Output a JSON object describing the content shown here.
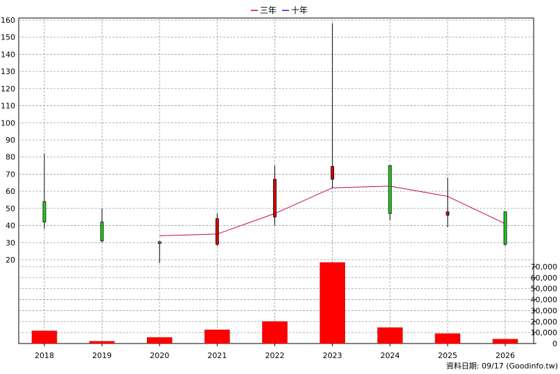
{
  "chart_data": {
    "type": "candlestick+bar",
    "legend": [
      {
        "name": "三年",
        "color": "#c00060"
      },
      {
        "name": "十年",
        "color": "#6000c0"
      }
    ],
    "categories": [
      "2018",
      "2019",
      "2020",
      "2021",
      "2022",
      "2023",
      "2024",
      "2025",
      "2026"
    ],
    "price_axis": {
      "ylim": [
        20,
        160
      ],
      "ticks": [
        20,
        30,
        40,
        50,
        60,
        70,
        80,
        90,
        100,
        110,
        120,
        130,
        140,
        150,
        160
      ]
    },
    "volume_axis": {
      "ylim": [
        0,
        70000
      ],
      "ticks": [
        "0",
        "10,000",
        "20,000",
        "30,000",
        "40,000",
        "50,000",
        "60,000",
        "70,000"
      ]
    },
    "candles": [
      {
        "open": 42,
        "close": 54,
        "high": 82,
        "low": 38,
        "color": "green"
      },
      {
        "open": 31,
        "close": 42,
        "high": 50,
        "low": 30,
        "color": "green"
      },
      {
        "open": 29.5,
        "close": 30.5,
        "high": 31,
        "low": 18,
        "color": "green"
      },
      {
        "open": 44,
        "close": 29,
        "high": 47,
        "low": 28,
        "color": "red"
      },
      {
        "open": 67,
        "close": 45,
        "high": 75,
        "low": 40,
        "color": "red"
      },
      {
        "open": 74.5,
        "close": 67,
        "high": 158,
        "low": 62,
        "color": "red"
      },
      {
        "open": 47,
        "close": 75,
        "high": 75,
        "low": 43,
        "color": "green"
      },
      {
        "open": 48,
        "close": 46,
        "high": 68,
        "low": 39,
        "color": "red"
      },
      {
        "open": 29,
        "close": 48,
        "high": 48,
        "low": 28,
        "color": "green"
      }
    ],
    "ma3": [
      null,
      null,
      34,
      35,
      47,
      62,
      63,
      57,
      41
    ],
    "volume": [
      11500,
      2000,
      5500,
      12500,
      20000,
      77000,
      14500,
      9000,
      4000
    ],
    "grid": true,
    "legend_placement": "top"
  },
  "source_note": "資料日期: 09/17 (Goodinfo.tw)"
}
